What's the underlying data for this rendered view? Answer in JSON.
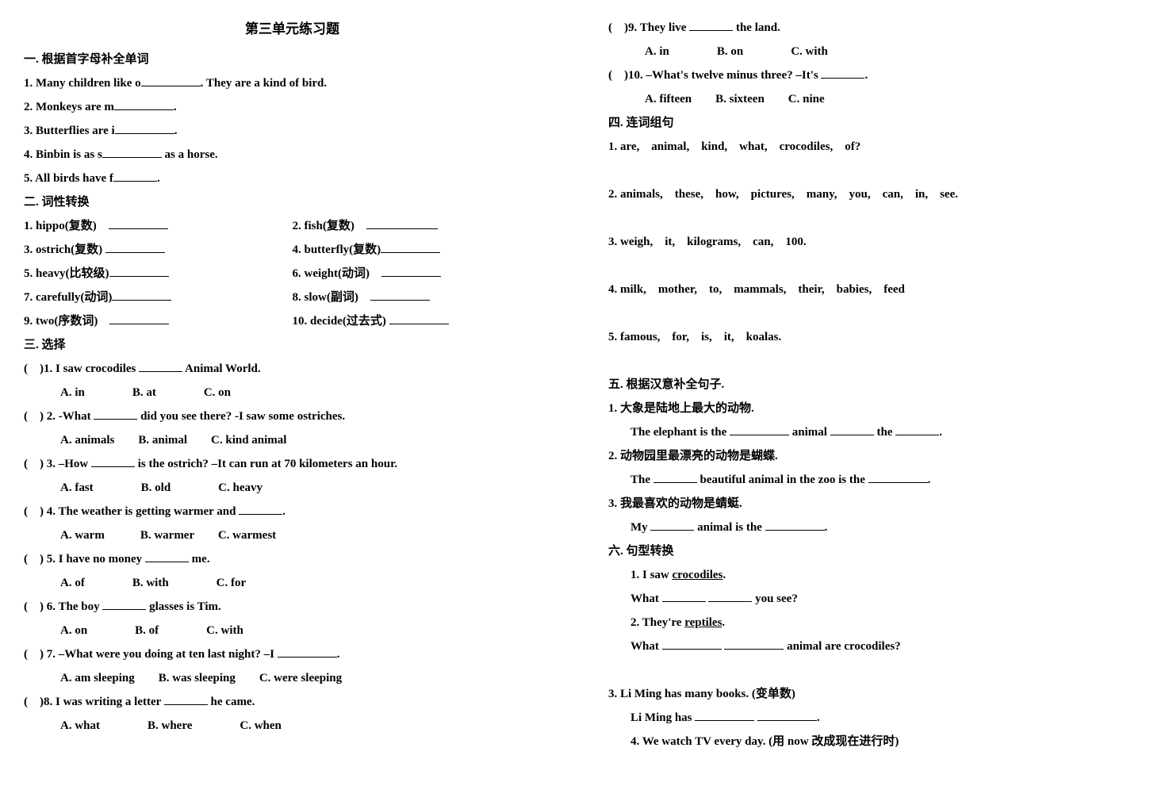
{
  "title": "第三单元练习题",
  "sec1": {
    "heading": "一. 根据首字母补全单词",
    "q1": "1. Many children like o",
    "q1b": ". They are a kind of bird.",
    "q2": "2. Monkeys are m",
    "q2b": ".",
    "q3": "3. Butterflies are i",
    "q3b": ".",
    "q4": "4. Binbin is as s",
    "q4b": " as a horse.",
    "q5": "5. All birds have f",
    "q5b": "."
  },
  "sec2": {
    "heading": "二. 词性转换",
    "l": {
      "q1": "1. hippo(复数)",
      "q3": "3. ostrich(复数)",
      "q5": "5. heavy(比较级)",
      "q7": "7. carefully(动词)",
      "q9": "9. two(序数词)"
    },
    "r": {
      "q2": "2. fish(复数)",
      "q4": "4. butterfly(复数)",
      "q6": "6. weight(动词)",
      "q8": "8. slow(副词)",
      "q10": "10. decide(过去式)"
    }
  },
  "sec3": {
    "heading": "三. 选择",
    "q1": "(　)1. I saw crocodiles ",
    "q1b": " Animal World.",
    "q1o": "A. in　　　　B. at　　　　C. on",
    "q2": "(　) 2. -What ",
    "q2b": " did you see there? -I saw some ostriches.",
    "q2o": "A. animals　　B. animal　　C. kind animal",
    "q3": "(　) 3. –How ",
    "q3b": " is the ostrich? –It can run at 70 kilometers an hour.",
    "q3o": "A. fast　　　　B. old　　　　C. heavy",
    "q4": "(　) 4. The weather is getting warmer and ",
    "q4b": ".",
    "q4o": "A. warm　　　B. warmer　　C. warmest",
    "q5": "(　) 5. I have no money ",
    "q5b": " me.",
    "q5o": "A. of　　　　B. with　　　　C. for",
    "q6": "(　) 6. The boy ",
    "q6b": " glasses is Tim.",
    "q6o": "A. on　　　　B. of　　　　C. with",
    "q7": "(　) 7. –What were you doing at ten last night? –I ",
    "q7b": ".",
    "q7o": "A. am sleeping　　B. was sleeping　　C. were sleeping",
    "q8": "(　)8. I was writing a letter ",
    "q8b": " he came.",
    "q8o": "A. what　　　　B. where　　　　C. when",
    "q9": "(　)9. They live ",
    "q9b": " the land.",
    "q9o": "A. in　　　　B. on　　　　C. with",
    "q10": "(　)10. –What's twelve minus three? –It's ",
    "q10b": ".",
    "q10o": "A. fifteen　　B. sixteen　　C. nine"
  },
  "sec4": {
    "heading": "四. 连词组句",
    "q1": "1. are,　animal,　kind,　what,　crocodiles,　of?",
    "q2": "2. animals,　these,　how,　pictures,　many,　you,　can,　in,　see.",
    "q3": "3. weigh,　it,　kilograms,　can,　100.",
    "q4": "4. milk,　mother,　to,　mammals,　their,　babies,　feed",
    "q5": "5. famous,　for,　is,　it,　koalas."
  },
  "sec5": {
    "heading": "五. 根据汉意补全句子.",
    "q1cn": "1. 大象是陆地上最大的动物.",
    "q1a": "The elephant is the ",
    "q1b": " animal ",
    "q1c": " the ",
    "q1d": ".",
    "q2cn": "2. 动物园里最漂亮的动物是蝴蝶.",
    "q2a": "The ",
    "q2b": " beautiful animal in the zoo is the ",
    "q2c": ".",
    "q3cn": "3. 我最喜欢的动物是蜻蜓.",
    "q3a": "My ",
    "q3b": " animal is the ",
    "q3c": "."
  },
  "sec6": {
    "heading": "六. 句型转换",
    "q1a": "1. I saw ",
    "q1u": "crocodiles",
    "q1b": ".",
    "q1ans_a": "What ",
    "q1ans_b": " you see?",
    "q2a": "2. They're ",
    "q2u": "reptiles",
    "q2b": ".",
    "q2ans_a": "What ",
    "q2ans_b": " animal are crocodiles?",
    "q3": "3. Li Ming has many books. (变单数)",
    "q3ans_a": "Li Ming has ",
    "q3ans_b": ".",
    "q4": "4. We watch TV every day. (用 now 改成现在进行时)"
  }
}
